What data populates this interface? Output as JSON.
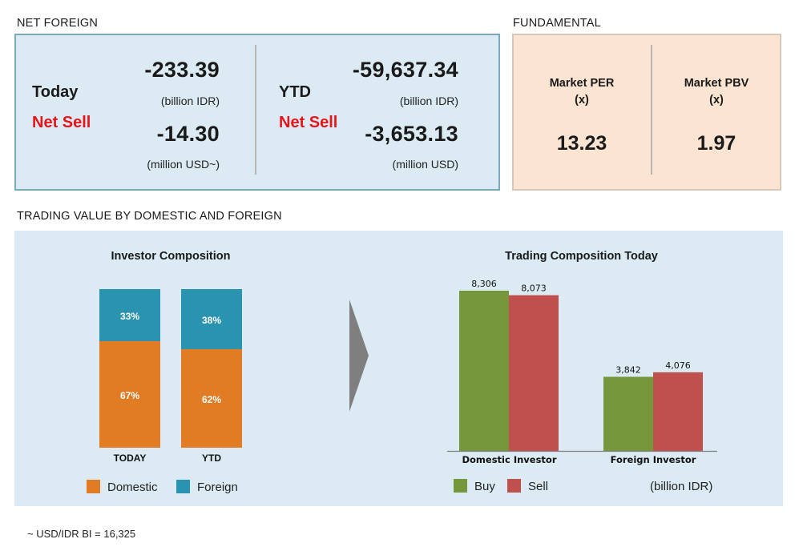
{
  "net_foreign": {
    "section_title": "NET FOREIGN",
    "today": {
      "label": "Today",
      "status": "Net Sell",
      "idr_value": "-233.39",
      "idr_unit": "(billion IDR)",
      "usd_value": "-14.30",
      "usd_unit": "(million USD~)"
    },
    "ytd": {
      "label": "YTD",
      "status": "Net Sell",
      "idr_value": "-59,637.34",
      "idr_unit": "(billion IDR)",
      "usd_value": "-3,653.13",
      "usd_unit": "(million USD)"
    }
  },
  "fundamental": {
    "section_title": "FUNDAMENTAL",
    "per": {
      "label": "Market PER",
      "unit": "(x)",
      "value": "13.23"
    },
    "pbv": {
      "label": "Market PBV",
      "unit": "(x)",
      "value": "1.97"
    }
  },
  "trading_value": {
    "section_title": "TRADING VALUE BY DOMESTIC AND FOREIGN"
  },
  "chart_data": [
    {
      "type": "bar",
      "stacked": true,
      "title": "Investor Composition",
      "categories": [
        "TODAY",
        "YTD"
      ],
      "series": [
        {
          "name": "Domestic",
          "values": [
            67,
            62
          ],
          "labels": [
            "67%",
            "62%"
          ],
          "color": "#e27c24"
        },
        {
          "name": "Foreign",
          "values": [
            33,
            38
          ],
          "labels": [
            "33%",
            "38%"
          ],
          "color": "#2a93b0"
        }
      ],
      "ylim": [
        0,
        100
      ],
      "legend": "bottom"
    },
    {
      "type": "bar",
      "title": "Trading Composition Today",
      "categories": [
        "Domestic Investor",
        "Foreign Investor"
      ],
      "series": [
        {
          "name": "Buy",
          "values": [
            8306,
            3842
          ],
          "labels": [
            "8,306",
            "3,842"
          ],
          "color": "#76963c"
        },
        {
          "name": "Sell",
          "values": [
            8073,
            4076
          ],
          "labels": [
            "8,073",
            "4,076"
          ],
          "color": "#c0504d"
        }
      ],
      "unit_note": "(billion IDR)",
      "legend": "bottom"
    }
  ],
  "footnote": "~ USD/IDR BI = 16,325"
}
